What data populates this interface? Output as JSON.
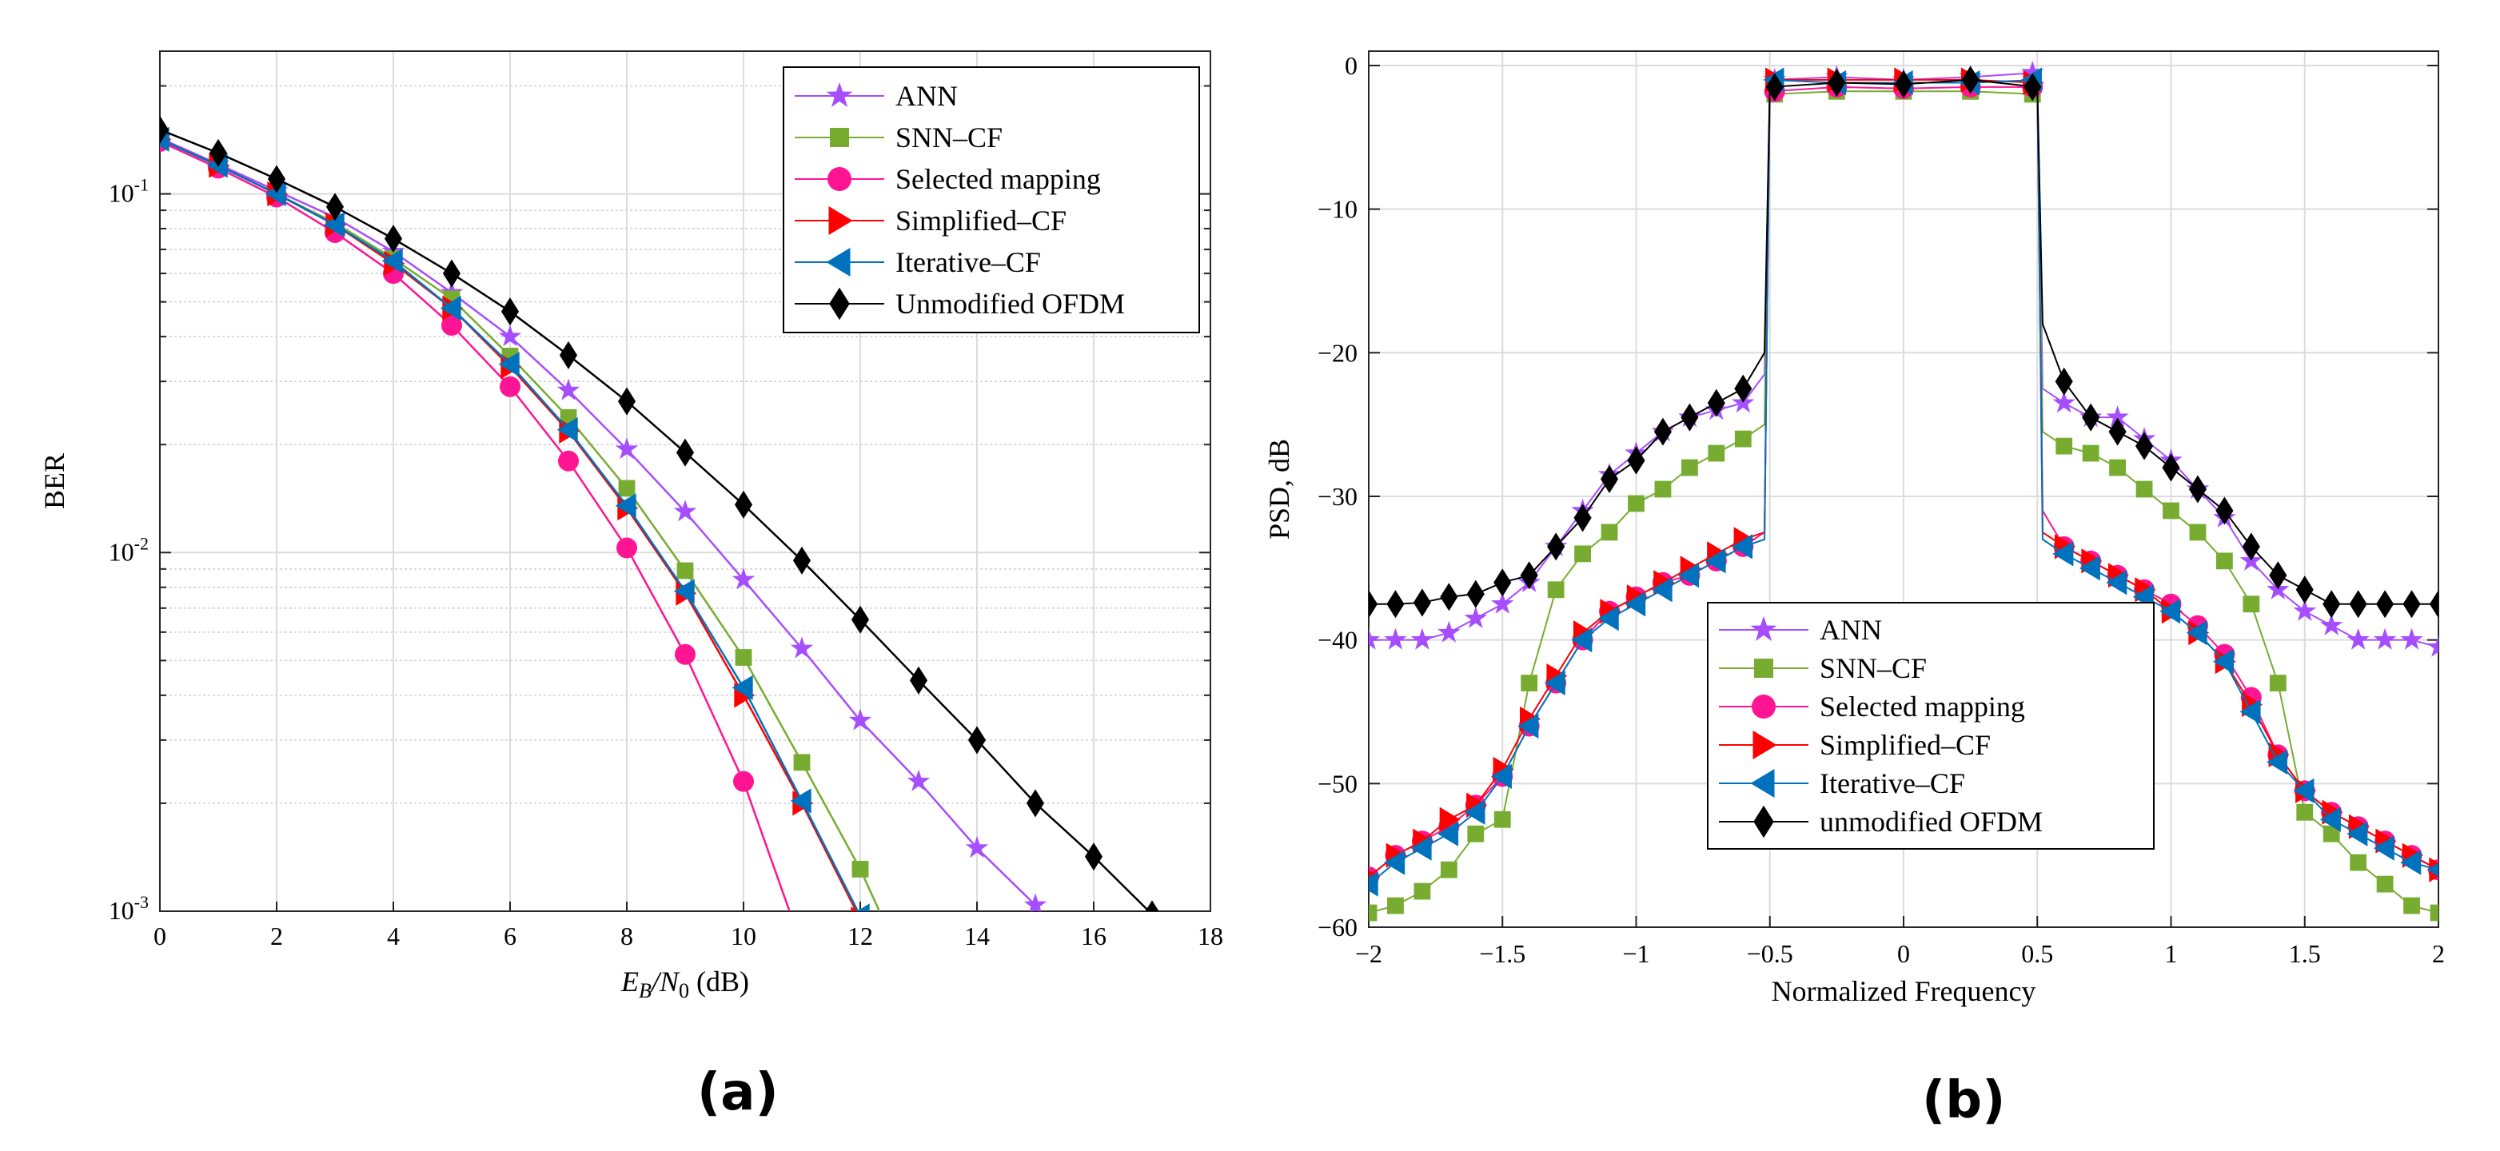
{
  "colors": {
    "ANN": "#a64dff",
    "SNN-CF": "#77ac30",
    "Selected mapping": "#ff1493",
    "Simplified-CF": "#ff0000",
    "Iterative-CF": "#0072bd",
    "Unmodified OFDM": "#000000"
  },
  "chart_data": [
    {
      "type": "line",
      "caption": "(a)",
      "xlabel": "E_B/N_0 (dB)",
      "xlabel_parts": [
        "E",
        "B",
        "/N",
        "0",
        " (dB)"
      ],
      "ylabel": "BER",
      "yscale": "log",
      "xlim": [
        0,
        18
      ],
      "ylim": [
        0.001,
        0.25
      ],
      "xticks": [
        0,
        2,
        4,
        6,
        8,
        10,
        12,
        14,
        16,
        18
      ],
      "yticks": [
        {
          "base": "10",
          "exp": "-1",
          "value": 0.1
        },
        {
          "base": "10",
          "exp": "-2",
          "value": 0.01
        },
        {
          "base": "10",
          "exp": "-3",
          "value": 0.001
        }
      ],
      "grid": true,
      "legend_position": "top-right",
      "series": [
        {
          "name": "ANN",
          "marker": "star",
          "x": [
            0,
            1,
            2,
            3,
            4,
            5,
            6,
            7,
            8,
            9,
            10,
            11,
            12,
            13,
            14,
            15,
            15.6
          ],
          "y": [
            0.143,
            0.121,
            0.102,
            0.086,
            0.069,
            0.053,
            0.04,
            0.0283,
            0.0194,
            0.013,
            0.0084,
            0.0054,
            0.0034,
            0.0023,
            0.0015,
            0.00104,
            0.0008
          ]
        },
        {
          "name": "SNN–CF",
          "marker": "square",
          "x": [
            0,
            1,
            2,
            3,
            4,
            5,
            6,
            7,
            8,
            9,
            10,
            11,
            12,
            12.6
          ],
          "y": [
            0.142,
            0.12,
            0.1,
            0.083,
            0.066,
            0.051,
            0.0353,
            0.0238,
            0.0151,
            0.0089,
            0.0051,
            0.0026,
            0.00131,
            0.0008
          ]
        },
        {
          "name": "Selected mapping",
          "marker": "circle",
          "x": [
            0,
            1,
            2,
            3,
            4,
            5,
            6,
            7,
            8,
            9,
            10,
            11
          ],
          "y": [
            0.14,
            0.118,
            0.098,
            0.078,
            0.06,
            0.043,
            0.029,
            0.018,
            0.0103,
            0.0052,
            0.0023,
            0.0008
          ]
        },
        {
          "name": "Simplified–CF",
          "marker": "triangle-right",
          "x": [
            0,
            1,
            2,
            3,
            4,
            5,
            6,
            7,
            8,
            9,
            10,
            11,
            12
          ],
          "y": [
            0.142,
            0.12,
            0.1,
            0.082,
            0.064,
            0.048,
            0.033,
            0.0218,
            0.0133,
            0.0077,
            0.004,
            0.002,
            0.00095
          ]
        },
        {
          "name": "Iterative–CF",
          "marker": "triangle-left",
          "x": [
            0,
            1,
            2,
            3,
            4,
            5,
            6,
            7,
            8,
            9,
            10,
            11,
            12
          ],
          "y": [
            0.142,
            0.12,
            0.1,
            0.082,
            0.065,
            0.048,
            0.0335,
            0.022,
            0.0135,
            0.0078,
            0.0042,
            0.00203,
            0.00097
          ]
        },
        {
          "name": "Unmodified OFDM",
          "marker": "diamond",
          "x": [
            0,
            1,
            2,
            3,
            4,
            5,
            6,
            7,
            8,
            9,
            10,
            11,
            12,
            13,
            14,
            15,
            16,
            17
          ],
          "y": [
            0.151,
            0.13,
            0.11,
            0.092,
            0.075,
            0.06,
            0.047,
            0.0355,
            0.0264,
            0.019,
            0.0136,
            0.0095,
            0.0065,
            0.0044,
            0.003,
            0.002,
            0.00142,
            0.00098
          ]
        }
      ]
    },
    {
      "type": "line",
      "caption": "(b)",
      "xlabel": "Normalized Frequency",
      "ylabel": "PSD, dB",
      "xlim": [
        -2,
        2
      ],
      "ylim": [
        -60,
        1
      ],
      "xticks": [
        {
          "v": -2,
          "l": "−2"
        },
        {
          "v": -1.5,
          "l": "−1.5"
        },
        {
          "v": -1,
          "l": "−1"
        },
        {
          "v": -0.5,
          "l": "−0.5"
        },
        {
          "v": 0,
          "l": "0"
        },
        {
          "v": 0.5,
          "l": "0.5"
        },
        {
          "v": 1,
          "l": "1"
        },
        {
          "v": 1.5,
          "l": "1.5"
        },
        {
          "v": 2,
          "l": "2"
        }
      ],
      "yticks": [
        {
          "v": 0,
          "l": "0"
        },
        {
          "v": -10,
          "l": "−10"
        },
        {
          "v": -20,
          "l": "−20"
        },
        {
          "v": -30,
          "l": "−30"
        },
        {
          "v": -40,
          "l": "−40"
        },
        {
          "v": -50,
          "l": "−50"
        },
        {
          "v": -60,
          "l": "−60"
        }
      ],
      "grid": true,
      "legend_position": "lower-center",
      "x": [
        -2,
        -1.9,
        -1.8,
        -1.7,
        -1.6,
        -1.5,
        -1.4,
        -1.3,
        -1.2,
        -1.1,
        -1,
        -0.9,
        -0.8,
        -0.7,
        -0.6,
        -0.52,
        -0.5,
        -0.25,
        0,
        0.25,
        0.5,
        0.52,
        0.6,
        0.7,
        0.8,
        0.9,
        1,
        1.1,
        1.2,
        1.3,
        1.4,
        1.5,
        1.6,
        1.7,
        1.8,
        1.9,
        2
      ],
      "series": [
        {
          "name": "ANN",
          "marker": "star",
          "y": [
            -40,
            -40,
            -40,
            -39.5,
            -38.5,
            -37.5,
            -36,
            -33.5,
            -31,
            -28.5,
            -27,
            -25.5,
            -24.5,
            -24,
            -23.5,
            -21.5,
            -1,
            -0.8,
            -1,
            -0.8,
            -0.5,
            -22.5,
            -23.5,
            -24.5,
            -24.5,
            -26,
            -27.5,
            -29.5,
            -31.5,
            -34.5,
            -36.5,
            -38,
            -39,
            -40,
            -40,
            -40,
            -40.5
          ]
        },
        {
          "name": "SNN–CF",
          "marker": "square",
          "y": [
            -59,
            -58.5,
            -57.5,
            -56,
            -53.5,
            -52.5,
            -43,
            -36.5,
            -34,
            -32.5,
            -30.5,
            -29.5,
            -28,
            -27,
            -26,
            -25,
            -2,
            -1.8,
            -1.8,
            -1.8,
            -2,
            -25.5,
            -26.5,
            -27,
            -28,
            -29.5,
            -31,
            -32.5,
            -34.5,
            -37.5,
            -43,
            -52,
            -53.5,
            -55.5,
            -57,
            -58.5,
            -59
          ]
        },
        {
          "name": "Selected mapping",
          "marker": "circle",
          "y": [
            -56.5,
            -55,
            -54,
            -53,
            -51.5,
            -49.5,
            -46,
            -43,
            -40,
            -38,
            -37,
            -36,
            -35.5,
            -34.5,
            -33.5,
            -32.5,
            -1.8,
            -1.5,
            -1.6,
            -1.5,
            -1.5,
            -31,
            -33.5,
            -34.5,
            -35.5,
            -36.5,
            -37.5,
            -39,
            -41,
            -44,
            -48,
            -50.5,
            -52,
            -53,
            -54,
            -55,
            -56
          ]
        },
        {
          "name": "Simplified–CF",
          "marker": "triangle-right",
          "y": [
            -56.5,
            -55,
            -54,
            -52.5,
            -51.5,
            -49,
            -45.5,
            -42.5,
            -39.5,
            -38,
            -37,
            -36,
            -35,
            -34,
            -33,
            -32.5,
            -1,
            -1,
            -1,
            -1,
            -1.2,
            -32.5,
            -33.5,
            -34.5,
            -35.5,
            -36.5,
            -38,
            -39.5,
            -41.5,
            -44.5,
            -48,
            -50.5,
            -52,
            -53,
            -54,
            -55,
            -56
          ]
        },
        {
          "name": "Iterative–CF",
          "marker": "triangle-left",
          "y": [
            -57,
            -55.5,
            -54.5,
            -53.5,
            -52,
            -49.5,
            -46,
            -43,
            -40,
            -38.5,
            -37.5,
            -36.5,
            -35.5,
            -34.5,
            -33.5,
            -33,
            -1,
            -1.2,
            -1.2,
            -1.2,
            -1,
            -33,
            -34,
            -35,
            -36,
            -37,
            -38,
            -39.5,
            -41.5,
            -45,
            -48.5,
            -50.5,
            -52.5,
            -53.5,
            -54.5,
            -55.5,
            -56
          ]
        },
        {
          "name": "unmodified OFDM",
          "marker": "diamond",
          "y": [
            -37.5,
            -37.5,
            -37.4,
            -37,
            -36.8,
            -36,
            -35.5,
            -33.5,
            -31.5,
            -28.8,
            -27.5,
            -25.5,
            -24.5,
            -23.5,
            -22.5,
            -20,
            -1.5,
            -1.2,
            -1.3,
            -1,
            -1.5,
            -18,
            -22,
            -24.5,
            -25.5,
            -26.5,
            -28,
            -29.5,
            -31,
            -33.5,
            -35.5,
            -36.5,
            -37.5,
            -37.5,
            -37.5,
            -37.5,
            -37.5
          ]
        }
      ]
    }
  ]
}
